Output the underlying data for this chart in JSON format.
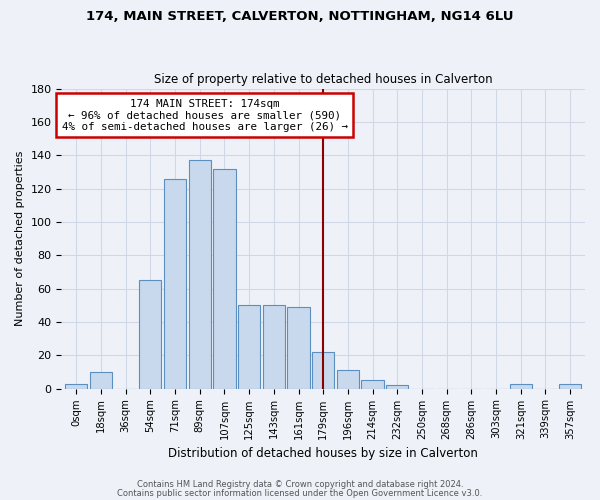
{
  "title": "174, MAIN STREET, CALVERTON, NOTTINGHAM, NG14 6LU",
  "subtitle": "Size of property relative to detached houses in Calverton",
  "xlabel": "Distribution of detached houses by size in Calverton",
  "ylabel": "Number of detached properties",
  "footer_line1": "Contains HM Land Registry data © Crown copyright and database right 2024.",
  "footer_line2": "Contains public sector information licensed under the Open Government Licence v3.0.",
  "bar_labels": [
    "0sqm",
    "18sqm",
    "36sqm",
    "54sqm",
    "71sqm",
    "89sqm",
    "107sqm",
    "125sqm",
    "143sqm",
    "161sqm",
    "179sqm",
    "196sqm",
    "214sqm",
    "232sqm",
    "250sqm",
    "268sqm",
    "286sqm",
    "303sqm",
    "321sqm",
    "339sqm",
    "357sqm"
  ],
  "bar_values": [
    3,
    10,
    0,
    65,
    126,
    137,
    132,
    50,
    50,
    49,
    22,
    11,
    5,
    2,
    0,
    0,
    0,
    0,
    3,
    0,
    3
  ],
  "bar_color": "#c8d9ed",
  "bar_edge_color": "#5a8fc0",
  "vline_x": 10,
  "vline_color": "#8b0000",
  "annotation_title": "174 MAIN STREET: 174sqm",
  "annotation_line1": "← 96% of detached houses are smaller (590)",
  "annotation_line2": "4% of semi-detached houses are larger (26) →",
  "annotation_box_color": "#ffffff",
  "annotation_box_edge": "#cc0000",
  "ylim": [
    0,
    180
  ],
  "background_color": "#eef2f8",
  "grid_color": "#d0d8e8"
}
